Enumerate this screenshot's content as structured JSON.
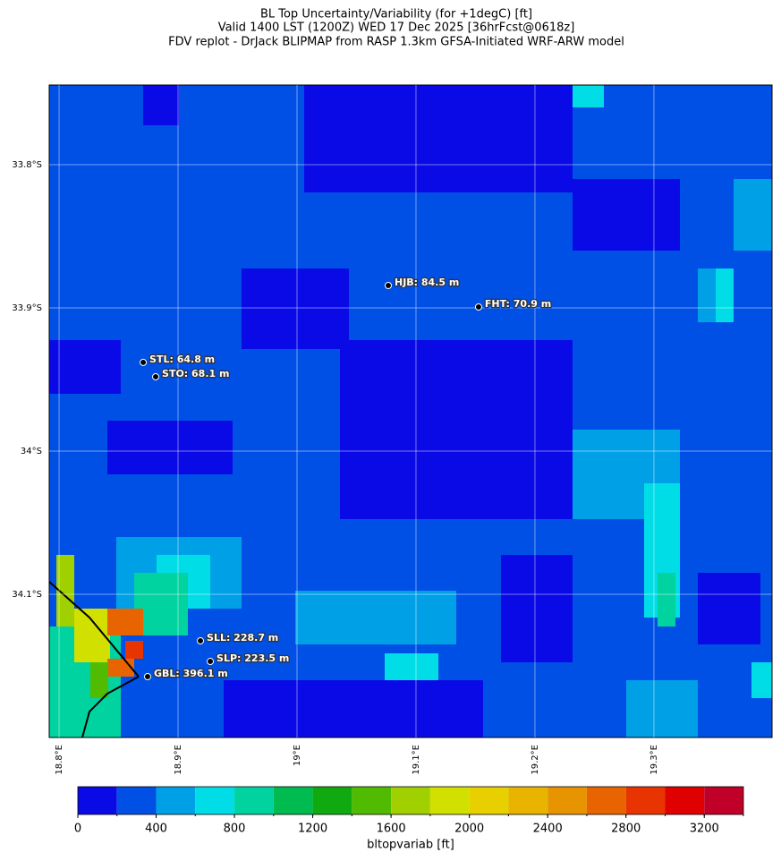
{
  "title": [
    "BL Top Uncertainty/Variability (for +1degC) [ft]",
    "Valid 1400 LST (1200Z) WED 17 Dec 2025 [36hrFcst@0618z]",
    "FDV replot - DrJack BLIPMAP from RASP 1.3km GFSA-Initiated WRF-ARW model"
  ],
  "map": {
    "xlim": [
      18.7917,
      19.3993
    ],
    "ylim": [
      -34.2,
      -33.7444
    ],
    "xticks": [
      {
        "value": 18.8,
        "label": "18.8°E"
      },
      {
        "value": 18.9,
        "label": "18.9°E"
      },
      {
        "value": 19.0,
        "label": "19°E"
      },
      {
        "value": 19.1,
        "label": "19.1°E"
      },
      {
        "value": 19.2,
        "label": "19.2°E"
      },
      {
        "value": 19.3,
        "label": "19.3°E"
      }
    ],
    "yticks": [
      {
        "value": -33.8,
        "label": "33.8°S"
      },
      {
        "value": -33.9,
        "label": "33.9°S"
      },
      {
        "value": -34.0,
        "label": "34°S"
      },
      {
        "value": -34.1,
        "label": "34.1°S"
      }
    ],
    "stations": [
      {
        "label": "HJB: 84.5 m",
        "lon": 19.0767,
        "lat": -33.8844
      },
      {
        "label": "FHT: 70.9 m",
        "lon": 19.1526,
        "lat": -33.8994
      },
      {
        "label": "STL: 64.8 m",
        "lon": 18.8707,
        "lat": -33.9381
      },
      {
        "label": "STO: 68.1 m",
        "lon": 18.8812,
        "lat": -33.9481
      },
      {
        "label": "SLL: 228.7 m",
        "lon": 18.9188,
        "lat": -34.1325
      },
      {
        "label": "SLP: 223.5 m",
        "lon": 18.9271,
        "lat": -34.1469
      },
      {
        "label": "GBL: 396.1 m",
        "lon": 18.8744,
        "lat": -34.1575
      }
    ]
  },
  "colorbar": {
    "label": "bltopvariab [ft]",
    "lim": [
      0,
      3400
    ],
    "bounds": [
      0,
      200,
      400,
      600,
      800,
      1000,
      1200,
      1400,
      1600,
      1800,
      2000,
      2200,
      2400,
      2600,
      2800,
      3000,
      3200,
      3400
    ],
    "colors": [
      "#0a0ae6",
      "#0050e6",
      "#00a0e6",
      "#00dde6",
      "#00d2a0",
      "#00bb50",
      "#10aa10",
      "#50bb00",
      "#a0d000",
      "#d2e000",
      "#e8d000",
      "#e8b400",
      "#e89400",
      "#e86400",
      "#e83400",
      "#e00000",
      "#c00028"
    ],
    "ticks": [
      0,
      400,
      800,
      1200,
      1600,
      2000,
      2400,
      2800,
      3200
    ]
  }
}
